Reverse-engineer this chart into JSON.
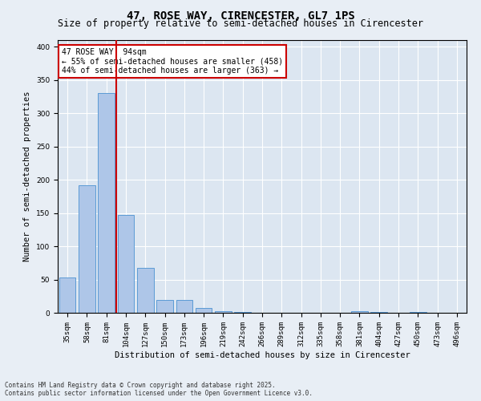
{
  "title": "47, ROSE WAY, CIRENCESTER, GL7 1PS",
  "subtitle": "Size of property relative to semi-detached houses in Cirencester",
  "xlabel": "Distribution of semi-detached houses by size in Cirencester",
  "ylabel": "Number of semi-detached properties",
  "categories": [
    "35sqm",
    "58sqm",
    "81sqm",
    "104sqm",
    "127sqm",
    "150sqm",
    "173sqm",
    "196sqm",
    "219sqm",
    "242sqm",
    "266sqm",
    "289sqm",
    "312sqm",
    "335sqm",
    "358sqm",
    "381sqm",
    "404sqm",
    "427sqm",
    "450sqm",
    "473sqm",
    "496sqm"
  ],
  "values": [
    53,
    192,
    330,
    147,
    67,
    19,
    19,
    7,
    2,
    1,
    0,
    0,
    0,
    0,
    0,
    3,
    1,
    0,
    1,
    0,
    0
  ],
  "bar_color": "#aec6e8",
  "bar_edge_color": "#5b9bd5",
  "vline_x_idx": 2,
  "vline_color": "#cc0000",
  "annotation_title": "47 ROSE WAY: 94sqm",
  "annotation_line1": "← 55% of semi-detached houses are smaller (458)",
  "annotation_line2": "44% of semi-detached houses are larger (363) →",
  "annotation_box_color": "#cc0000",
  "ylim": [
    0,
    410
  ],
  "yticks": [
    0,
    50,
    100,
    150,
    200,
    250,
    300,
    350,
    400
  ],
  "bg_color": "#e8eef5",
  "plot_bg_color": "#dce6f1",
  "footer_line1": "Contains HM Land Registry data © Crown copyright and database right 2025.",
  "footer_line2": "Contains public sector information licensed under the Open Government Licence v3.0.",
  "title_fontsize": 10,
  "subtitle_fontsize": 8.5,
  "axis_label_fontsize": 7.5,
  "tick_fontsize": 6.5,
  "annotation_fontsize": 7
}
